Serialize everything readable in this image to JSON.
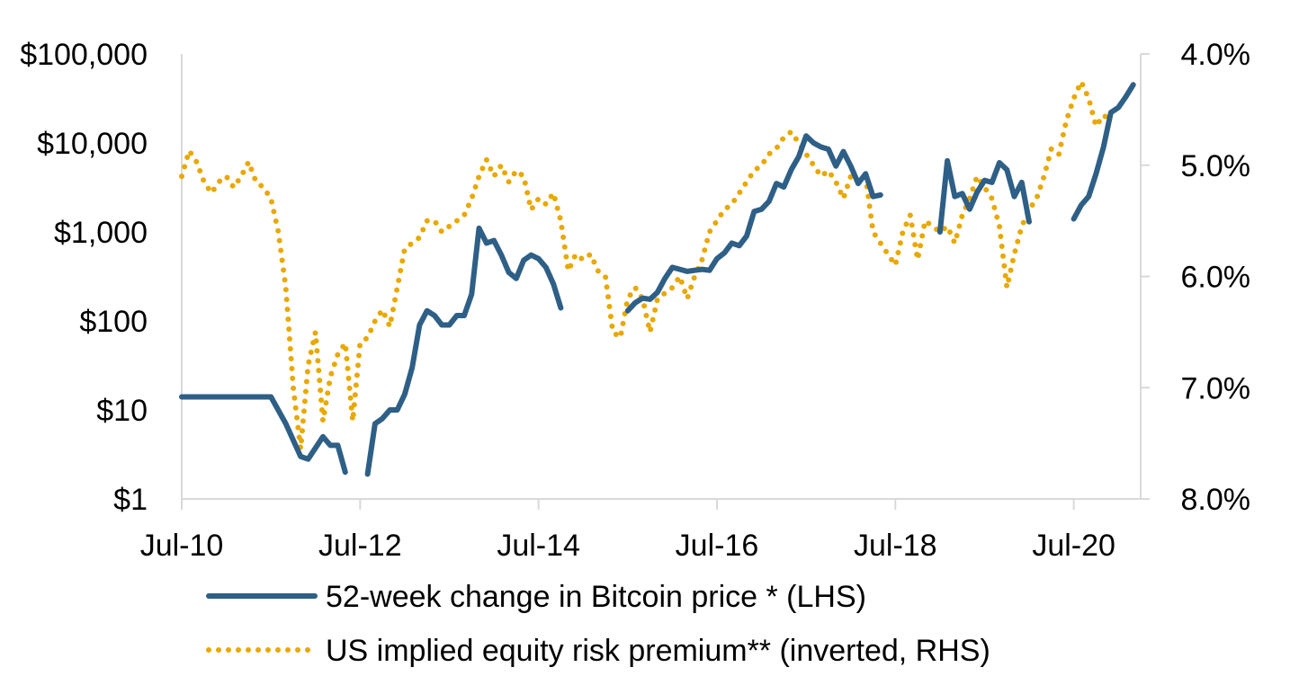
{
  "chart_data": {
    "type": "line",
    "title": "",
    "x_axis": {
      "type": "time",
      "range": [
        "2010-07",
        "2021-04"
      ],
      "tick_labels": [
        "Jul-10",
        "Jul-12",
        "Jul-14",
        "Jul-16",
        "Jul-18",
        "Jul-20"
      ],
      "tick_dates": [
        "2010-07",
        "2012-07",
        "2014-07",
        "2016-07",
        "2018-07",
        "2020-07"
      ]
    },
    "y_left": {
      "scale": "log",
      "range": [
        1,
        100000
      ],
      "ticks": [
        1,
        10,
        100,
        1000,
        10000,
        100000
      ],
      "tick_labels": [
        "$1",
        "$10",
        "$100",
        "$1,000",
        "$10,000",
        "$100,000"
      ]
    },
    "y_right": {
      "inverted": true,
      "range": [
        4.0,
        8.0
      ],
      "ticks": [
        4.0,
        5.0,
        6.0,
        7.0,
        8.0
      ],
      "tick_labels": [
        "4.0%",
        "5.0%",
        "6.0%",
        "7.0%",
        "8.0%"
      ]
    },
    "grid": false,
    "legend_position": "bottom",
    "series": [
      {
        "name": "52-week change in Bitcoin price * (LHS)",
        "axis": "left",
        "style": "solid",
        "color": "#2E5F86",
        "segments": [
          [
            [
              "2010-07",
              14
            ],
            [
              "2011-01",
              14
            ],
            [
              "2011-07",
              14
            ],
            [
              "2011-09",
              7
            ],
            [
              "2011-11",
              3
            ],
            [
              "2011-12",
              2.8
            ],
            [
              "2012-02",
              5
            ],
            [
              "2012-03",
              4
            ],
            [
              "2012-04",
              4
            ],
            [
              "2012-05",
              2
            ]
          ],
          [
            [
              "2012-08",
              1.9
            ],
            [
              "2012-09",
              7
            ],
            [
              "2012-10",
              8
            ],
            [
              "2012-11",
              10
            ],
            [
              "2012-12",
              10
            ],
            [
              "2013-01",
              15
            ],
            [
              "2013-02",
              30
            ],
            [
              "2013-03",
              90
            ],
            [
              "2013-04",
              130
            ],
            [
              "2013-05",
              115
            ],
            [
              "2013-06",
              90
            ],
            [
              "2013-07",
              90
            ],
            [
              "2013-08",
              115
            ],
            [
              "2013-09",
              115
            ],
            [
              "2013-10",
              200
            ],
            [
              "2013-11",
              1100
            ],
            [
              "2013-12",
              750
            ],
            [
              "2014-01",
              800
            ],
            [
              "2014-02",
              550
            ],
            [
              "2014-03",
              350
            ],
            [
              "2014-04",
              300
            ],
            [
              "2014-05",
              480
            ],
            [
              "2014-06",
              550
            ],
            [
              "2014-07",
              500
            ],
            [
              "2014-08",
              400
            ],
            [
              "2014-09",
              260
            ],
            [
              "2014-10",
              140
            ]
          ],
          [
            [
              "2015-07",
              130
            ],
            [
              "2015-08",
              160
            ],
            [
              "2015-09",
              180
            ],
            [
              "2015-10",
              175
            ],
            [
              "2015-11",
              210
            ],
            [
              "2015-12",
              300
            ],
            [
              "2016-01",
              400
            ],
            [
              "2016-02",
              380
            ],
            [
              "2016-03",
              360
            ],
            [
              "2016-04",
              370
            ],
            [
              "2016-05",
              380
            ],
            [
              "2016-06",
              370
            ],
            [
              "2016-07",
              500
            ],
            [
              "2016-08",
              580
            ],
            [
              "2016-09",
              750
            ],
            [
              "2016-10",
              700
            ],
            [
              "2016-11",
              900
            ],
            [
              "2016-12",
              1700
            ],
            [
              "2017-01",
              1800
            ],
            [
              "2017-02",
              2200
            ],
            [
              "2017-03",
              3500
            ],
            [
              "2017-04",
              3200
            ],
            [
              "2017-05",
              5000
            ],
            [
              "2017-06",
              7000
            ],
            [
              "2017-07",
              12000
            ],
            [
              "2017-08",
              10000
            ],
            [
              "2017-09",
              9000
            ],
            [
              "2017-10",
              8500
            ],
            [
              "2017-11",
              5500
            ],
            [
              "2017-12",
              8000
            ],
            [
              "2018-01",
              5500
            ],
            [
              "2018-02",
              3500
            ],
            [
              "2018-03",
              4500
            ],
            [
              "2018-04",
              2500
            ],
            [
              "2018-05",
              2600
            ]
          ],
          [
            [
              "2019-01",
              1000
            ],
            [
              "2019-02",
              6300
            ],
            [
              "2019-03",
              2500
            ],
            [
              "2019-04",
              2700
            ],
            [
              "2019-05",
              1800
            ],
            [
              "2019-06",
              2800
            ],
            [
              "2019-07",
              3800
            ],
            [
              "2019-08",
              3600
            ],
            [
              "2019-09",
              6000
            ],
            [
              "2019-10",
              5000
            ],
            [
              "2019-11",
              2500
            ],
            [
              "2019-12",
              3600
            ],
            [
              "2020-01",
              1300
            ]
          ],
          [
            [
              "2020-07",
              1400
            ],
            [
              "2020-08",
              2000
            ],
            [
              "2020-09",
              2500
            ],
            [
              "2020-10",
              4500
            ],
            [
              "2020-11",
              9000
            ],
            [
              "2020-12",
              22000
            ],
            [
              "2021-01",
              25000
            ],
            [
              "2021-02",
              33000
            ],
            [
              "2021-03",
              45000
            ]
          ]
        ]
      },
      {
        "name": "US implied equity risk premium** (inverted, RHS)",
        "axis": "right",
        "style": "dotted",
        "color": "#E8A800",
        "points": [
          [
            "2010-07",
            5.1
          ],
          [
            "2010-08",
            4.87
          ],
          [
            "2010-09",
            4.97
          ],
          [
            "2010-10",
            5.15
          ],
          [
            "2010-11",
            5.25
          ],
          [
            "2010-12",
            5.15
          ],
          [
            "2011-01",
            5.1
          ],
          [
            "2011-02",
            5.2
          ],
          [
            "2011-03",
            5.1
          ],
          [
            "2011-04",
            4.97
          ],
          [
            "2011-05",
            5.15
          ],
          [
            "2011-06",
            5.2
          ],
          [
            "2011-07",
            5.3
          ],
          [
            "2011-08",
            5.6
          ],
          [
            "2011-09",
            6.1
          ],
          [
            "2011-10",
            7.0
          ],
          [
            "2011-11",
            7.55
          ],
          [
            "2011-12",
            6.8
          ],
          [
            "2012-01",
            6.5
          ],
          [
            "2012-02",
            7.3
          ],
          [
            "2012-03",
            6.9
          ],
          [
            "2012-04",
            6.7
          ],
          [
            "2012-05",
            6.6
          ],
          [
            "2012-06",
            7.3
          ],
          [
            "2012-07",
            6.6
          ],
          [
            "2012-08",
            6.55
          ],
          [
            "2012-09",
            6.4
          ],
          [
            "2012-10",
            6.3
          ],
          [
            "2012-11",
            6.45
          ],
          [
            "2012-12",
            6.1
          ],
          [
            "2013-01",
            5.75
          ],
          [
            "2013-02",
            5.7
          ],
          [
            "2013-03",
            5.65
          ],
          [
            "2013-04",
            5.5
          ],
          [
            "2013-05",
            5.5
          ],
          [
            "2013-06",
            5.6
          ],
          [
            "2013-07",
            5.55
          ],
          [
            "2013-08",
            5.5
          ],
          [
            "2013-09",
            5.45
          ],
          [
            "2013-10",
            5.3
          ],
          [
            "2013-11",
            5.1
          ],
          [
            "2013-12",
            4.95
          ],
          [
            "2014-01",
            5.1
          ],
          [
            "2014-02",
            5.0
          ],
          [
            "2014-03",
            5.15
          ],
          [
            "2014-04",
            5.05
          ],
          [
            "2014-05",
            5.1
          ],
          [
            "2014-06",
            5.4
          ],
          [
            "2014-07",
            5.3
          ],
          [
            "2014-08",
            5.35
          ],
          [
            "2014-09",
            5.25
          ],
          [
            "2014-10",
            5.5
          ],
          [
            "2014-11",
            5.95
          ],
          [
            "2014-12",
            5.8
          ],
          [
            "2015-01",
            5.85
          ],
          [
            "2015-02",
            5.8
          ],
          [
            "2015-03",
            5.95
          ],
          [
            "2015-04",
            6.0
          ],
          [
            "2015-05",
            6.5
          ],
          [
            "2015-06",
            6.55
          ],
          [
            "2015-07",
            6.2
          ],
          [
            "2015-08",
            6.1
          ],
          [
            "2015-09",
            6.2
          ],
          [
            "2015-10",
            6.5
          ],
          [
            "2015-11",
            6.2
          ],
          [
            "2015-12",
            6.15
          ],
          [
            "2016-01",
            6.1
          ],
          [
            "2016-02",
            6.0
          ],
          [
            "2016-03",
            6.2
          ],
          [
            "2016-04",
            6.0
          ],
          [
            "2016-05",
            5.85
          ],
          [
            "2016-06",
            5.6
          ],
          [
            "2016-07",
            5.5
          ],
          [
            "2016-08",
            5.4
          ],
          [
            "2016-09",
            5.35
          ],
          [
            "2016-10",
            5.25
          ],
          [
            "2016-11",
            5.15
          ],
          [
            "2016-12",
            5.05
          ],
          [
            "2017-01",
            5.0
          ],
          [
            "2017-02",
            4.9
          ],
          [
            "2017-03",
            4.85
          ],
          [
            "2017-04",
            4.75
          ],
          [
            "2017-05",
            4.7
          ],
          [
            "2017-06",
            4.8
          ],
          [
            "2017-07",
            4.9
          ],
          [
            "2017-08",
            5.0
          ],
          [
            "2017-09",
            5.1
          ],
          [
            "2017-10",
            5.05
          ],
          [
            "2017-11",
            5.15
          ],
          [
            "2017-12",
            5.3
          ],
          [
            "2018-01",
            5.1
          ],
          [
            "2018-02",
            5.15
          ],
          [
            "2018-03",
            5.1
          ],
          [
            "2018-04",
            5.6
          ],
          [
            "2018-05",
            5.7
          ],
          [
            "2018-06",
            5.8
          ],
          [
            "2018-07",
            5.9
          ],
          [
            "2018-08",
            5.6
          ],
          [
            "2018-09",
            5.45
          ],
          [
            "2018-10",
            5.85
          ],
          [
            "2018-11",
            5.5
          ],
          [
            "2018-12",
            5.55
          ],
          [
            "2019-01",
            5.6
          ],
          [
            "2019-02",
            5.55
          ],
          [
            "2019-03",
            5.7
          ],
          [
            "2019-04",
            5.45
          ],
          [
            "2019-05",
            5.3
          ],
          [
            "2019-06",
            5.1
          ],
          [
            "2019-07",
            5.2
          ],
          [
            "2019-08",
            5.3
          ],
          [
            "2019-09",
            5.55
          ],
          [
            "2019-10",
            6.1
          ],
          [
            "2019-11",
            5.8
          ],
          [
            "2019-12",
            5.55
          ],
          [
            "2020-01",
            5.4
          ],
          [
            "2020-02",
            5.3
          ],
          [
            "2020-03",
            5.1
          ],
          [
            "2020-04",
            4.85
          ],
          [
            "2020-05",
            4.9
          ],
          [
            "2020-06",
            4.6
          ],
          [
            "2020-07",
            4.4
          ],
          [
            "2020-08",
            4.25
          ],
          [
            "2020-09",
            4.4
          ],
          [
            "2020-10",
            4.65
          ],
          [
            "2020-11",
            4.55
          ],
          [
            "2020-12",
            4.6
          ]
        ]
      }
    ]
  },
  "legend": {
    "series1_label": "52-week change in Bitcoin price * (LHS)",
    "series2_label": "US implied equity risk premium** (inverted, RHS)"
  }
}
